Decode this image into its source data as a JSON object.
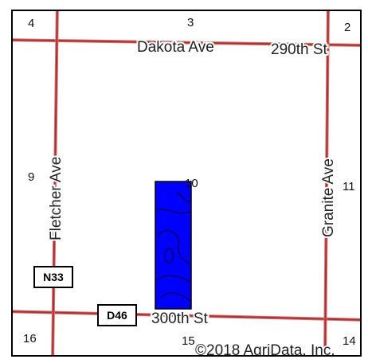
{
  "map": {
    "roads": {
      "dakota_ave": "Dakota Ave",
      "th290": "290th St",
      "th300": "300th St",
      "fletcher_ave": "Fletcher Ave",
      "granite_ave": "Granite Ave"
    },
    "shields": {
      "n33": "N33",
      "d46": "D46"
    },
    "sections": [
      "4",
      "3",
      "2",
      "9",
      "10",
      "11",
      "16",
      "15",
      "14"
    ],
    "copyright": "©2018 AgriData, Inc.",
    "colors": {
      "road": "#d42020",
      "road_edge": "#a07070",
      "field": "#0000ff",
      "contour": "#000000"
    }
  }
}
